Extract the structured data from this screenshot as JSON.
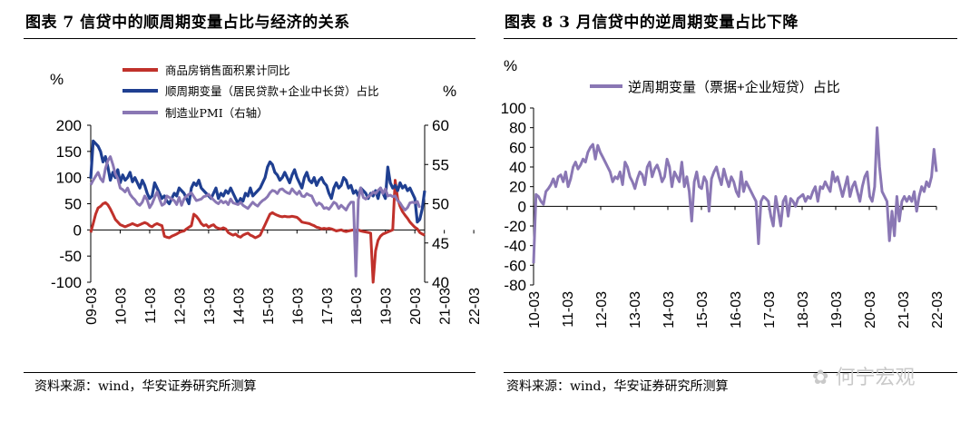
{
  "left": {
    "title": "图表 7 信贷中的顺周期变量占比与经济的关系",
    "source": "资料来源：wind，华安证券研究所测算"
  },
  "right": {
    "title": "图表 8 3 月信贷中的逆周期变量占比下降",
    "source": "资料来源：wind，华安证券研究所测算"
  },
  "watermark": "何宁宏观",
  "chart_data": [
    {
      "type": "line",
      "title": "图表 7 信贷中的顺周期变量占比与经济的关系",
      "ylabel": "%",
      "y2label": "%",
      "ylim": [
        -100,
        200
      ],
      "y2lim": [
        40,
        60
      ],
      "yticks": [
        "200",
        "150",
        "100",
        "50",
        "0",
        "-50",
        "-100"
      ],
      "y2ticks": [
        "60",
        "55",
        "50",
        "45",
        "40"
      ],
      "xticks": [
        "09-03",
        "10-03",
        "11-03",
        "12-03",
        "13-03",
        "14-03",
        "15-03",
        "16-03",
        "17-03",
        "18-03",
        "19-03",
        "20-03",
        "21-03",
        "22-03"
      ],
      "x_start": "2009-03",
      "series": [
        {
          "name": "商品房销售面积累计同比",
          "color": "#c0312b",
          "axis": "left",
          "values": [
            -5,
            12,
            30,
            42,
            45,
            50,
            52,
            48,
            40,
            30,
            20,
            15,
            10,
            8,
            6,
            8,
            10,
            12,
            10,
            8,
            10,
            12,
            14,
            12,
            8,
            6,
            10,
            12,
            10,
            8,
            -12,
            -14,
            -15,
            -12,
            -10,
            -8,
            -5,
            -3,
            -2,
            2,
            5,
            8,
            30,
            26,
            20,
            12,
            8,
            10,
            5,
            8,
            10,
            5,
            3,
            2,
            4,
            2,
            -5,
            -8,
            -10,
            -8,
            -12,
            -14,
            -10,
            -8,
            -6,
            -10,
            -12,
            -15,
            -13,
            -10,
            0,
            10,
            20,
            30,
            33,
            30,
            28,
            26,
            25,
            26,
            25,
            25,
            26,
            25,
            24,
            20,
            15,
            14,
            13,
            12,
            10,
            8,
            5,
            4,
            2,
            3,
            2,
            3,
            2,
            0,
            -2,
            -1,
            0,
            -2,
            -3,
            -2,
            -1,
            0,
            -1,
            0,
            -2,
            -3,
            -4,
            -5,
            -6,
            -100,
            -40,
            -20,
            -12,
            -8,
            -6,
            -4,
            -2,
            0,
            95,
            60,
            45,
            35,
            28,
            22,
            15,
            10,
            5,
            2,
            -5,
            -8,
            -10
          ]
        },
        {
          "name": "顺周期变量（居民贷款+企业中长贷）占比",
          "color": "#1f3f91",
          "axis": "left",
          "values": [
            98,
            170,
            165,
            160,
            150,
            130,
            140,
            120,
            95,
            110,
            100,
            115,
            90,
            105,
            95,
            100,
            110,
            92,
            100,
            90,
            80,
            95,
            85,
            70,
            60,
            65,
            90,
            80,
            70,
            60,
            65,
            55,
            50,
            60,
            70,
            65,
            80,
            75,
            70,
            60,
            50,
            80,
            90,
            85,
            95,
            80,
            75,
            70,
            65,
            60,
            70,
            80,
            60,
            70,
            65,
            75,
            70,
            80,
            70,
            60,
            50,
            60,
            55,
            70,
            65,
            80,
            65,
            70,
            75,
            80,
            90,
            100,
            120,
            130,
            125,
            110,
            105,
            95,
            100,
            110,
            100,
            90,
            105,
            115,
            100,
            90,
            80,
            100,
            110,
            95,
            90,
            100,
            85,
            95,
            100,
            90,
            85,
            70,
            60,
            80,
            90,
            80,
            85,
            100,
            95,
            80,
            85,
            70,
            75,
            65,
            80,
            75,
            70,
            60,
            70,
            65,
            75,
            60,
            80,
            70,
            60,
            120,
            90,
            80,
            85,
            75,
            90,
            80,
            85,
            75,
            80,
            70,
            60,
            15,
            20,
            40,
            75
          ]
        },
        {
          "name": "制造业PMI（右轴）",
          "color": "#8a77b4",
          "axis": "right",
          "values": [
            52.4,
            53.0,
            53.5,
            54.0,
            53.2,
            52.8,
            54.5,
            55.5,
            56.0,
            55.0,
            53.8,
            53.2,
            52.0,
            51.8,
            51.5,
            52.0,
            51.2,
            50.8,
            50.5,
            50.0,
            49.8,
            50.2,
            51.0,
            50.5,
            49.5,
            50.0,
            50.8,
            51.5,
            50.6,
            49.8,
            50.0,
            51.0,
            50.8,
            50.6,
            50.4,
            49.9,
            50.8,
            49.8,
            50.6,
            51.0,
            51.2,
            51.4,
            50.9,
            50.4,
            50.5,
            50.6,
            50.9,
            51.0,
            51.2,
            50.8,
            50.5,
            50.2,
            50.0,
            50.4,
            50.1,
            50.3,
            49.9,
            50.6,
            50.1,
            50.0,
            49.9,
            50.2,
            49.8,
            49.6,
            49.4,
            49.8,
            50.2,
            49.9,
            49.7,
            50.1,
            50.4,
            50.6,
            50.9,
            51.4,
            51.7,
            51.6,
            51.3,
            51.8,
            51.9,
            51.6,
            51.4,
            51.3,
            51.9,
            51.5,
            51.2,
            51.6,
            51.0,
            50.9,
            51.3,
            51.1,
            51.0,
            50.3,
            49.8,
            50.1,
            49.9,
            49.4,
            49.5,
            49.3,
            49.7,
            50.2,
            50.0,
            49.4,
            49.8,
            49.5,
            49.2,
            49.8,
            50.2,
            50.2,
            40.8,
            50.5,
            52.0,
            50.8,
            50.6,
            50.9,
            51.1,
            51.5,
            51.3,
            51.7,
            52.0,
            51.3,
            51.9,
            51.0,
            51.1,
            50.9,
            51.0,
            50.4,
            50.1,
            49.6,
            49.2,
            49.5,
            50.1,
            50.2,
            50.1,
            50.3,
            49.5
          ]
        }
      ]
    },
    {
      "type": "line",
      "title": "图表 8 3 月信贷中的逆周期变量占比下降",
      "ylabel": "%",
      "ylim": [
        -80,
        100
      ],
      "yticks": [
        "100",
        "80",
        "60",
        "40",
        "20",
        "0",
        "-20",
        "-40",
        "-60",
        "-80"
      ],
      "xticks": [
        "10-03",
        "11-03",
        "12-03",
        "13-03",
        "14-03",
        "15-03",
        "16-03",
        "17-03",
        "18-03",
        "19-03",
        "20-03",
        "21-03",
        "22-03"
      ],
      "x_start": "2010-03",
      "series": [
        {
          "name": "逆周期变量（票据+企业短贷）占比",
          "color": "#8a77b4",
          "values": [
            -58,
            12,
            10,
            5,
            2,
            15,
            18,
            22,
            28,
            20,
            30,
            32,
            25,
            35,
            20,
            28,
            40,
            45,
            38,
            42,
            48,
            45,
            55,
            60,
            63,
            48,
            62,
            55,
            50,
            45,
            40,
            35,
            25,
            30,
            28,
            35,
            22,
            45,
            40,
            30,
            25,
            18,
            28,
            35,
            32,
            22,
            40,
            45,
            30,
            38,
            42,
            35,
            25,
            30,
            48,
            40,
            20,
            35,
            30,
            25,
            45,
            20,
            30,
            15,
            -15,
            25,
            35,
            20,
            18,
            30,
            25,
            -5,
            28,
            35,
            40,
            30,
            22,
            38,
            28,
            20,
            30,
            25,
            15,
            10,
            35,
            15,
            25,
            20,
            15,
            10,
            5,
            -38,
            5,
            10,
            8,
            5,
            -10,
            -20,
            10,
            -5,
            -20,
            5,
            10,
            -10,
            8,
            5,
            0,
            8,
            10,
            12,
            5,
            10,
            8,
            15,
            20,
            5,
            20,
            18,
            25,
            20,
            15,
            35,
            25,
            30,
            20,
            10,
            20,
            30,
            10,
            20,
            25,
            15,
            5,
            20,
            30,
            35,
            10,
            5,
            20,
            80,
            40,
            15,
            10,
            5,
            -35,
            -5,
            -30,
            10,
            -15,
            5,
            10,
            5,
            10,
            5,
            15,
            -5,
            10,
            20,
            15,
            25,
            20,
            30,
            58,
            35
          ]
        }
      ]
    }
  ]
}
